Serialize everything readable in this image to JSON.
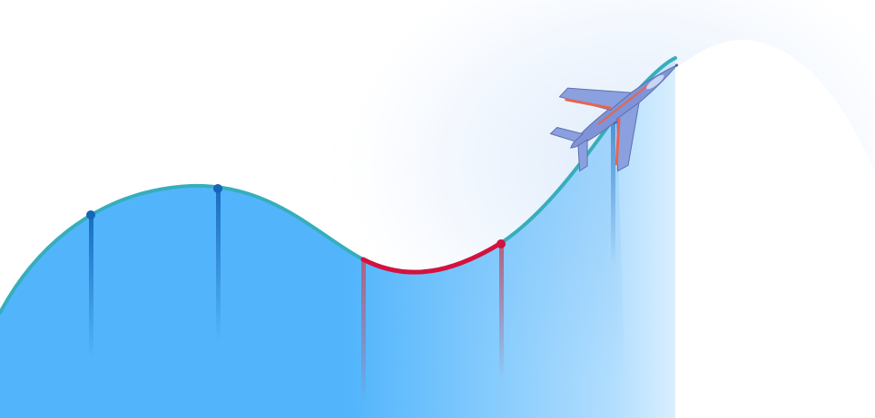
{
  "illustration": {
    "curve_color": "#36aebc",
    "highlight_color": "#d3123f",
    "marker_color": "#1565b8",
    "fill_color": "#52b5fc",
    "highlight_drop_color": "#b85a7a",
    "jet": {
      "icon": "fighter-jet-icon",
      "body_color": "#7f93d6",
      "stripe_color": "#e8644f"
    }
  }
}
